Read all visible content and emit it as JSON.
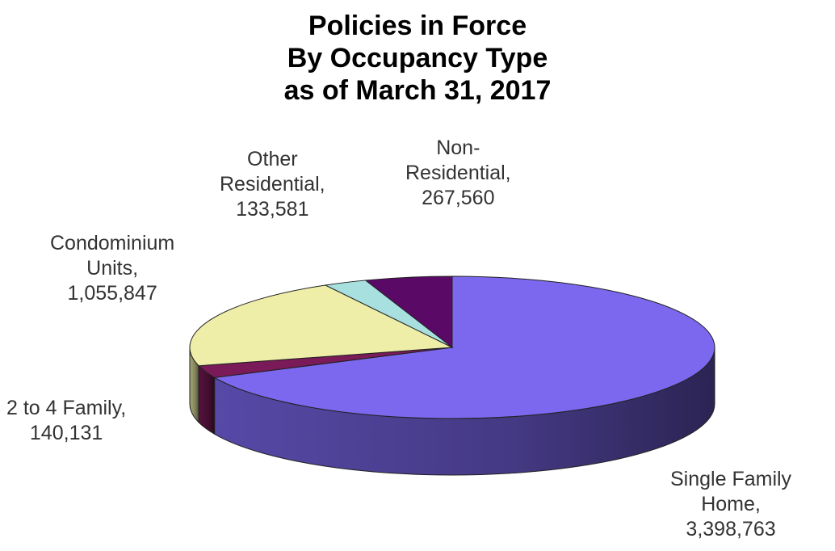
{
  "chart_data": {
    "type": "pie",
    "title_lines": [
      "Policies in Force",
      "By Occupancy Type",
      "as of March 31, 2017"
    ],
    "three_d": true,
    "slices": [
      {
        "name_lines": [
          "Single Family",
          "Home,"
        ],
        "value": 3398763,
        "value_label": "3,398,763",
        "color": "#7b68ee"
      },
      {
        "name_lines": [
          "2 to 4 Family,"
        ],
        "value": 140131,
        "value_label": "140,131",
        "color": "#7a1a58"
      },
      {
        "name_lines": [
          "Condominium",
          "Units,"
        ],
        "value": 1055847,
        "value_label": "1,055,847",
        "color": "#eeeea8"
      },
      {
        "name_lines": [
          "Other",
          "Residential,"
        ],
        "value": 133581,
        "value_label": "133,581",
        "color": "#a8e0e0"
      },
      {
        "name_lines": [
          "Non-",
          "Residential,"
        ],
        "value": 267560,
        "value_label": "267,560",
        "color": "#5a0a66"
      }
    ]
  }
}
